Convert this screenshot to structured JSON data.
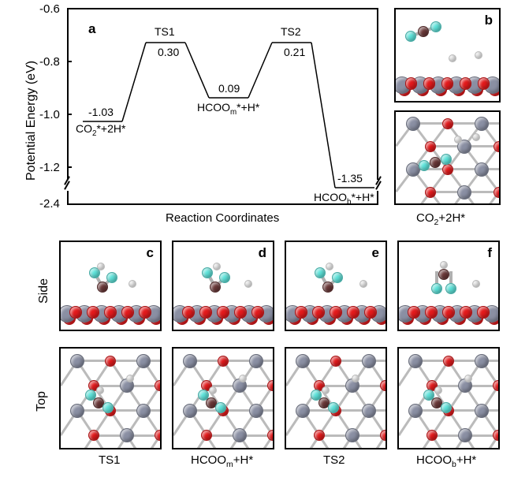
{
  "panel_a": {
    "label": "a",
    "ylabel": "Potential Energy (eV)",
    "xlabel": "Reaction Coordinates",
    "yticks_upper": [
      "-0.6",
      "-0.8",
      "-1.0",
      "-1.2"
    ],
    "ytick_lower": "-2.4",
    "states": [
      {
        "name_html": "CO<sub>2</sub>*+2H*",
        "short": "",
        "value": "-1.03",
        "e": -1.03
      },
      {
        "name_html": "TS1",
        "short": "TS1",
        "value": "0.30",
        "e": -0.73
      },
      {
        "name_html": "HCOO<sub>m</sub>*+H*",
        "short": "",
        "value": "0.09",
        "e": -0.94
      },
      {
        "name_html": "TS2",
        "short": "TS2",
        "value": "0.21",
        "e": -0.73
      },
      {
        "name_html": "HCOO<sub>b</sub>*+H*",
        "short": "",
        "value": "-1.35",
        "e": -1.35
      }
    ],
    "ylim_upper": [
      -1.26,
      -0.6
    ],
    "ylim_lower": [
      -2.46,
      -1.26
    ],
    "tick_fontsize": 15,
    "label_fontsize": 16,
    "line_color": "#000000",
    "line_width": 1.5
  },
  "panel_b": {
    "label": "b",
    "caption_html": "CO<sub>2</sub>+2H*"
  },
  "panels_cf": [
    {
      "label": "c",
      "caption": "TS1"
    },
    {
      "label": "d",
      "caption_html": "HCOO<sub>m</sub>+H*"
    },
    {
      "label": "e",
      "caption": "TS2"
    },
    {
      "label": "f",
      "caption_html": "HCOO<sub>b</sub>+H*"
    }
  ],
  "view_labels": {
    "side": "Side",
    "top": "Top"
  },
  "colors": {
    "metal": "#8a8fa3",
    "oxygen_lattice": "#e41a1c",
    "oxygen_mol": "#5ee5dc",
    "carbon": "#6b3838",
    "hydrogen": "#f8f8f8",
    "bond": "#b0b0b0",
    "background": "#ffffff",
    "border": "#000000"
  },
  "atom_sizes": {
    "metal": 18,
    "oxygen_lattice": 14,
    "oxygen_mol": 14,
    "carbon": 14,
    "hydrogen": 10
  }
}
